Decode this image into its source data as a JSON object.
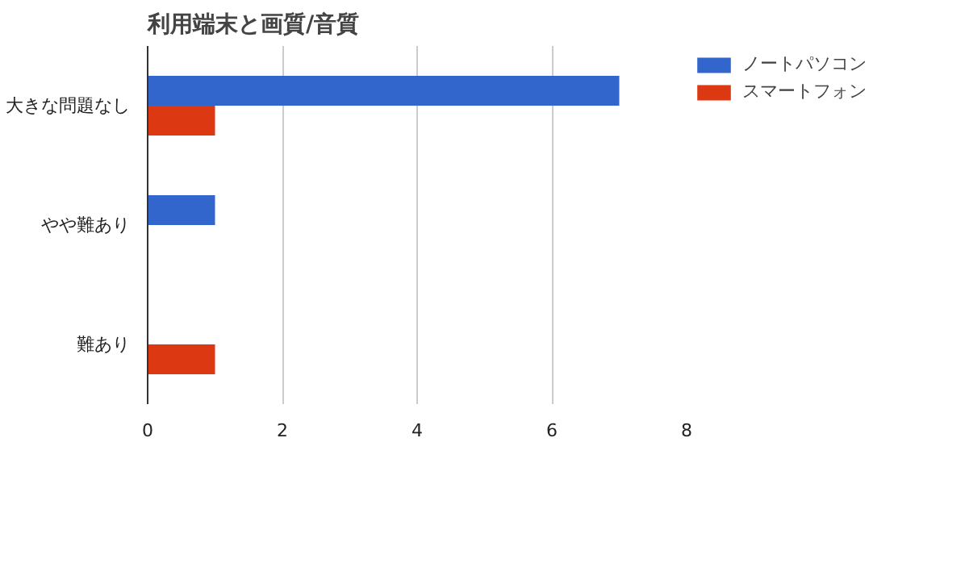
{
  "chart_data": {
    "type": "bar",
    "orientation": "horizontal",
    "title": "利用端末と画質/音質",
    "categories": [
      "大きな問題なし",
      "やや難あり",
      "難あり"
    ],
    "series": [
      {
        "name": "ノートパソコン",
        "color": "#3366cc",
        "values": [
          7,
          1,
          0
        ]
      },
      {
        "name": "スマートフォン",
        "color": "#dc3912",
        "values": [
          1,
          0,
          1
        ]
      }
    ],
    "xlim": [
      0,
      8
    ],
    "xticks": [
      0,
      2,
      4,
      6,
      8
    ],
    "grid": "x",
    "legend": "top right"
  }
}
